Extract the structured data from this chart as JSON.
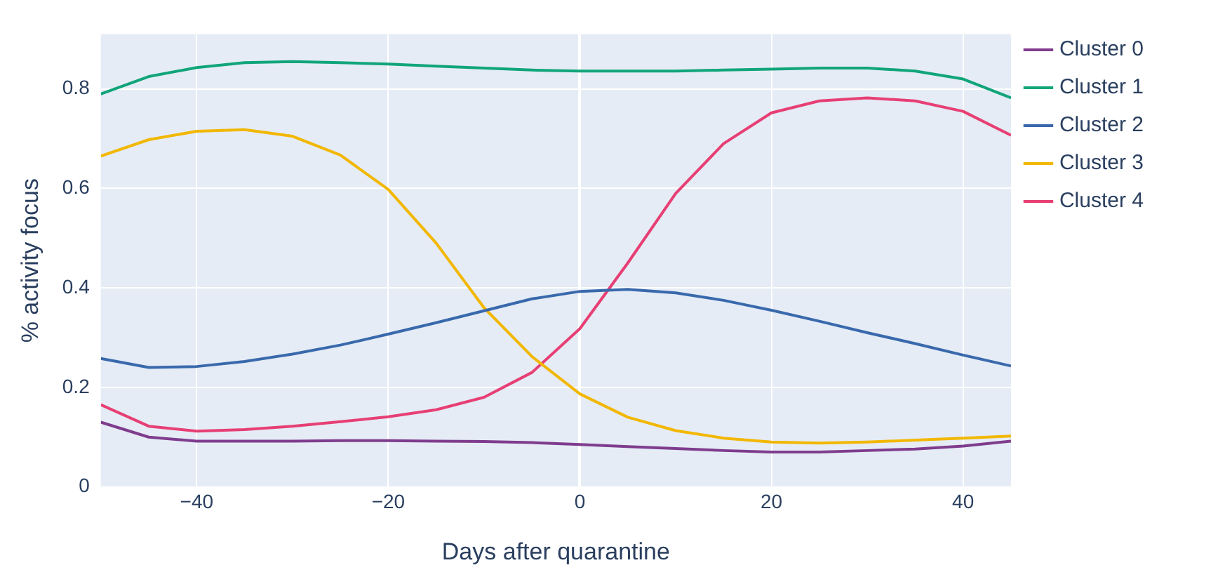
{
  "chart_data": {
    "type": "line",
    "xlabel": "Days after quarantine",
    "ylabel": "% activity focus",
    "x": [
      -50,
      -45,
      -40,
      -35,
      -30,
      -25,
      -20,
      -15,
      -10,
      -5,
      0,
      5,
      10,
      15,
      20,
      25,
      30,
      35,
      40,
      45
    ],
    "series": [
      {
        "name": "Cluster 0",
        "color": "#7f3c8d",
        "values": [
          0.13,
          0.1,
          0.092,
          0.092,
          0.092,
          0.093,
          0.093,
          0.092,
          0.091,
          0.089,
          0.085,
          0.081,
          0.077,
          0.073,
          0.07,
          0.07,
          0.073,
          0.076,
          0.082,
          0.092
        ]
      },
      {
        "name": "Cluster 1",
        "color": "#11a579",
        "values": [
          0.79,
          0.825,
          0.843,
          0.853,
          0.855,
          0.853,
          0.85,
          0.846,
          0.842,
          0.838,
          0.836,
          0.836,
          0.836,
          0.838,
          0.84,
          0.842,
          0.842,
          0.836,
          0.82,
          0.782
        ]
      },
      {
        "name": "Cluster 2",
        "color": "#3969ac",
        "values": [
          0.258,
          0.24,
          0.242,
          0.252,
          0.267,
          0.285,
          0.307,
          0.33,
          0.354,
          0.378,
          0.393,
          0.397,
          0.39,
          0.375,
          0.355,
          0.333,
          0.31,
          0.288,
          0.265,
          0.243
        ]
      },
      {
        "name": "Cluster 3",
        "color": "#f2b701",
        "values": [
          0.665,
          0.698,
          0.715,
          0.718,
          0.705,
          0.667,
          0.598,
          0.49,
          0.36,
          0.262,
          0.187,
          0.14,
          0.113,
          0.098,
          0.09,
          0.088,
          0.09,
          0.094,
          0.098,
          0.102
        ]
      },
      {
        "name": "Cluster 4",
        "color": "#e73f74",
        "values": [
          0.165,
          0.122,
          0.112,
          0.115,
          0.122,
          0.131,
          0.141,
          0.155,
          0.18,
          0.23,
          0.318,
          0.45,
          0.59,
          0.69,
          0.752,
          0.776,
          0.782,
          0.776,
          0.755,
          0.707
        ]
      }
    ],
    "xlim": [
      -50,
      45
    ],
    "xticks": [
      -40,
      -20,
      0,
      20,
      40
    ],
    "ylim": [
      0,
      0.91
    ],
    "yticks": [
      0,
      0.2,
      0.4,
      0.6,
      0.8
    ],
    "grid": true,
    "legend": "top right",
    "marker": "none",
    "line_style": "solid"
  }
}
